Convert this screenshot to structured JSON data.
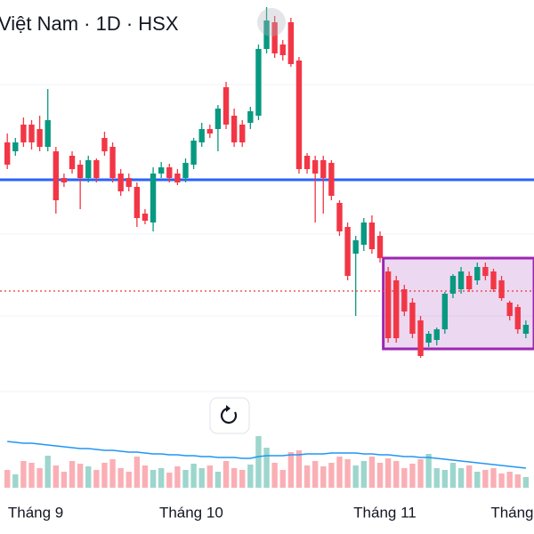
{
  "chart_data": {
    "type": "candlestick",
    "title": "Việt Nam · 1D · HSX",
    "open": [
      340,
      330,
      360,
      360,
      355,
      335,
      330,
      300,
      325,
      315,
      300,
      320,
      345,
      335,
      305,
      300,
      290,
      260,
      250,
      305,
      312,
      305,
      300,
      315,
      340,
      355,
      355,
      402,
      370,
      360,
      362,
      370,
      445,
      475,
      450,
      475,
      432,
      325,
      320,
      320,
      317,
      272,
      245,
      215,
      225,
      250,
      235,
      195,
      185,
      175,
      160,
      140,
      115,
      118,
      130,
      170,
      175,
      190,
      185,
      200,
      195,
      185,
      160,
      155,
      125
    ],
    "high": [
      350,
      345,
      368,
      365,
      370,
      400,
      335,
      305,
      330,
      320,
      325,
      322,
      352,
      340,
      310,
      305,
      295,
      265,
      312,
      318,
      316,
      310,
      322,
      345,
      362,
      360,
      382,
      408,
      378,
      365,
      380,
      450,
      492,
      482,
      455,
      480,
      436,
      328,
      325,
      325,
      320,
      275,
      250,
      235,
      255,
      258,
      240,
      200,
      190,
      180,
      165,
      145,
      128,
      132,
      172,
      192,
      200,
      195,
      205,
      205,
      198,
      190,
      162,
      158,
      140
    ],
    "low": [
      310,
      325,
      335,
      332,
      330,
      330,
      260,
      290,
      305,
      265,
      295,
      295,
      325,
      295,
      280,
      285,
      245,
      248,
      240,
      300,
      295,
      292,
      295,
      310,
      335,
      345,
      330,
      355,
      335,
      335,
      355,
      365,
      440,
      435,
      432,
      425,
      305,
      305,
      250,
      260,
      275,
      235,
      185,
      145,
      218,
      215,
      205,
      115,
      115,
      145,
      120,
      98,
      110,
      112,
      125,
      165,
      170,
      172,
      180,
      185,
      172,
      162,
      140,
      125,
      120
    ],
    "close": [
      315,
      340,
      340,
      340,
      335,
      365,
      275,
      295,
      310,
      300,
      320,
      300,
      330,
      300,
      285,
      290,
      255,
      252,
      305,
      312,
      300,
      295,
      317,
      342,
      355,
      350,
      378,
      360,
      340,
      340,
      375,
      445,
      477,
      440,
      438,
      428,
      310,
      310,
      305,
      300,
      280,
      240,
      190,
      230,
      250,
      220,
      210,
      120,
      120,
      150,
      125,
      100,
      125,
      130,
      170,
      190,
      195,
      175,
      200,
      190,
      175,
      165,
      145,
      130,
      135
    ],
    "volume": [
      20,
      15,
      30,
      28,
      22,
      36,
      25,
      18,
      30,
      27,
      24,
      20,
      28,
      32,
      22,
      18,
      35,
      25,
      20,
      22,
      17,
      24,
      20,
      27,
      22,
      25,
      18,
      30,
      22,
      20,
      26,
      58,
      45,
      28,
      20,
      40,
      42,
      25,
      30,
      24,
      28,
      35,
      32,
      25,
      30,
      35,
      28,
      33,
      30,
      22,
      27,
      32,
      38,
      22,
      20,
      28,
      22,
      25,
      18,
      20,
      22,
      16,
      18,
      15,
      12
    ],
    "volume_ma": [
      52,
      51,
      50,
      50,
      49,
      48,
      47,
      46,
      45,
      44,
      44,
      43,
      42,
      42,
      41,
      40,
      40,
      39,
      38,
      38,
      37,
      37,
      36,
      36,
      35,
      35,
      34,
      34,
      34,
      33,
      33,
      35,
      36,
      36,
      36,
      37,
      37,
      38,
      38,
      38,
      39,
      39,
      39,
      39,
      38,
      38,
      37,
      37,
      36,
      35,
      35,
      34,
      34,
      33,
      32,
      31,
      30,
      29,
      28,
      27,
      26,
      25,
      24,
      23,
      22
    ],
    "up_color": "#089981",
    "down_color": "#f23645",
    "ma_color": "#2196f3",
    "xlim": [
      -0.9,
      65
    ],
    "ylim": [
      40,
      500
    ],
    "volume_lim": [
      0,
      60
    ],
    "xticks": [
      {
        "value": 3.5,
        "label": "Tháng 9"
      },
      {
        "value": 22.7,
        "label": "Tháng 10"
      },
      {
        "value": 46.6,
        "label": "Tháng 11"
      },
      {
        "value": 62.3,
        "label": "Tháng"
      }
    ],
    "hlines": [
      {
        "value": 298,
        "color": "#2962ff",
        "style": "solid"
      },
      {
        "value": 173,
        "color": "#e53935",
        "style": "dotted"
      }
    ],
    "box": {
      "x": [
        46.4,
        65
      ],
      "y": [
        108,
        210
      ],
      "color": "#9c27b0"
    }
  }
}
